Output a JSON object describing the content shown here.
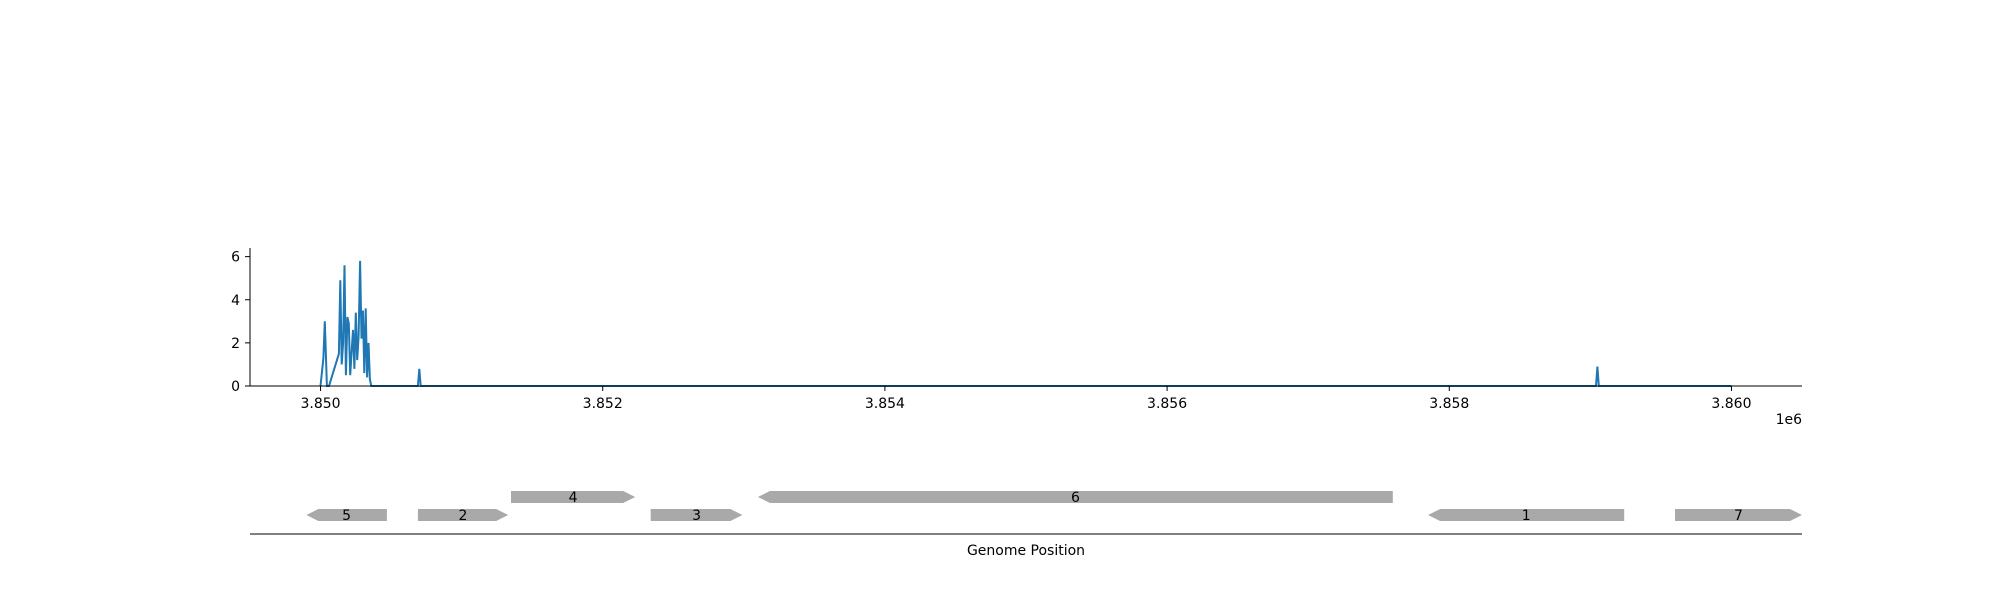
{
  "chart_data": {
    "type": "line",
    "xlabel": "Genome Position",
    "ylabel": "",
    "x_offset_label": "1e6",
    "xlim": [
      3849500,
      3860500
    ],
    "ylim": [
      0,
      6.4
    ],
    "x_ticks": [
      {
        "value": 3850000,
        "label": "3.850"
      },
      {
        "value": 3852000,
        "label": "3.852"
      },
      {
        "value": 3854000,
        "label": "3.854"
      },
      {
        "value": 3856000,
        "label": "3.856"
      },
      {
        "value": 3858000,
        "label": "3.858"
      },
      {
        "value": 3860000,
        "label": "3.860"
      }
    ],
    "y_ticks": [
      {
        "value": 0,
        "label": "0"
      },
      {
        "value": 2,
        "label": "2"
      },
      {
        "value": 4,
        "label": "4"
      },
      {
        "value": 6,
        "label": "6"
      }
    ],
    "grid": false,
    "series": [
      {
        "color": "#1f77b4",
        "x": [
          3850000,
          3850020,
          3850030,
          3850040,
          3850045,
          3850050,
          3850060,
          3850130,
          3850140,
          3850150,
          3850160,
          3850170,
          3850180,
          3850190,
          3850200,
          3850210,
          3850230,
          3850240,
          3850250,
          3850260,
          3850270,
          3850280,
          3850290,
          3850300,
          3850310,
          3850320,
          3850330,
          3850340,
          3850350,
          3850360,
          3850370,
          3850380,
          3850390,
          3850400,
          3850690,
          3850700,
          3850710,
          3859040,
          3859050,
          3859060,
          3860000
        ],
        "y": [
          0,
          1.3,
          3.0,
          1.0,
          0,
          0,
          0,
          1.5,
          4.9,
          1.0,
          2.0,
          5.6,
          0.5,
          3.2,
          2.9,
          0.5,
          2.6,
          0.8,
          3.4,
          1.2,
          2.3,
          5.8,
          2.2,
          3.5,
          0.6,
          3.6,
          0.4,
          2.0,
          0.3,
          0,
          0,
          0,
          0,
          0,
          0,
          0.8,
          0,
          0,
          0.9,
          0,
          0
        ]
      }
    ],
    "genes": [
      {
        "label": "5",
        "start": 3849900,
        "end": 3850470,
        "strand": "-",
        "track": 0
      },
      {
        "label": "2",
        "start": 3850690,
        "end": 3851330,
        "strand": "+",
        "track": 0
      },
      {
        "label": "4",
        "start": 3851350,
        "end": 3852230,
        "strand": "+",
        "track": 1
      },
      {
        "label": "3",
        "start": 3852340,
        "end": 3852990,
        "strand": "+",
        "track": 0
      },
      {
        "label": "6",
        "start": 3853100,
        "end": 3857600,
        "strand": "-",
        "track": 1
      },
      {
        "label": "1",
        "start": 3857850,
        "end": 3859240,
        "strand": "-",
        "track": 0
      },
      {
        "label": "7",
        "start": 3859600,
        "end": 3860500,
        "strand": "+",
        "track": 0
      }
    ],
    "gene_color": "#a9a9a9"
  }
}
